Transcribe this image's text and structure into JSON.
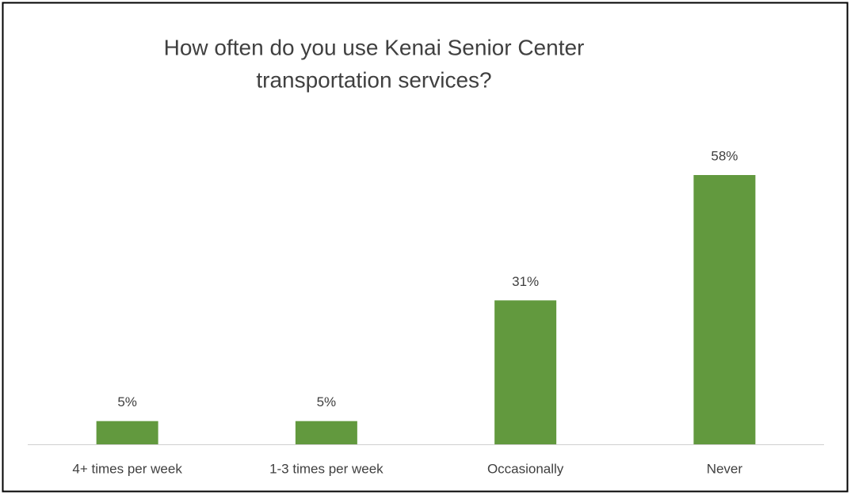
{
  "chart_data": {
    "type": "bar",
    "title": [
      "How often do you use Kenai Senior Center",
      "transportation services?"
    ],
    "categories": [
      "4+ times per week",
      "1-3 times per week",
      "Occasionally",
      "Never"
    ],
    "values": [
      5,
      5,
      31,
      58
    ],
    "value_labels": [
      "5%",
      "5%",
      "31%",
      "58%"
    ],
    "color": "#62993e"
  }
}
